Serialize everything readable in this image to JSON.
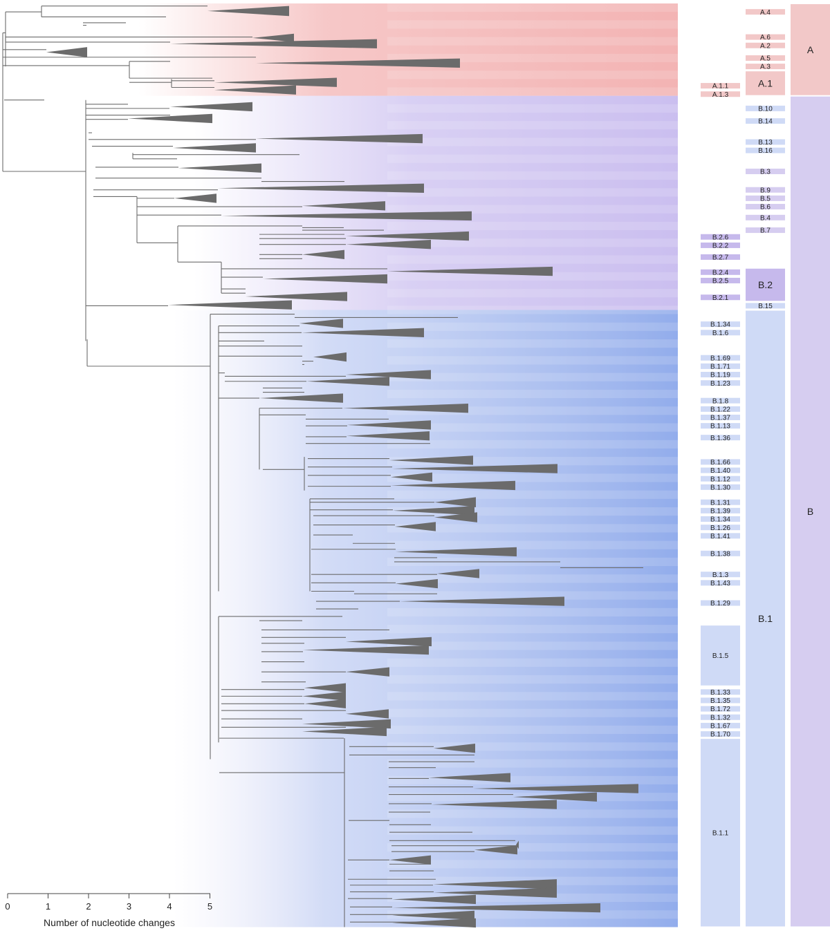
{
  "axis": {
    "label": "Number of nucleotide changes",
    "ticks": [
      "0",
      "1",
      "2",
      "3",
      "4",
      "5"
    ]
  },
  "colors": {
    "lineage_a": "#f2c8c8",
    "lineage_b": "#d6cdf0",
    "lineage_b1": "#cfdaf6",
    "lineage_b2": "#c6b9ec",
    "clade_triangle": "#6b6b6b",
    "branch": "#6b6b6b"
  },
  "level1": [
    {
      "label": "A",
      "row_start": 0,
      "row_end": 11
    },
    {
      "label": "B",
      "row_start": 11,
      "row_end": 110
    }
  ],
  "level2": [
    {
      "label": "A.4",
      "row": 1
    },
    {
      "label": "A.6",
      "row": 4
    },
    {
      "label": "A.2",
      "row": 5
    },
    {
      "label": "A.5",
      "row": 6.5
    },
    {
      "label": "A.3",
      "row": 7.5
    },
    {
      "label": "A.1",
      "row_start": 8,
      "row_end": 11
    },
    {
      "label": "B.10",
      "row": 12.5
    },
    {
      "label": "B.14",
      "row": 14
    },
    {
      "label": "B.13",
      "row": 16.5
    },
    {
      "label": "B.16",
      "row": 17.5
    },
    {
      "label": "B.3",
      "row": 20
    },
    {
      "label": "B.9",
      "row": 22.2
    },
    {
      "label": "B.5",
      "row": 23.2
    },
    {
      "label": "B.6",
      "row": 24.2
    },
    {
      "label": "B.4",
      "row": 25.5
    },
    {
      "label": "B.7",
      "row": 27
    },
    {
      "label": "B.2",
      "row_start": 31.5,
      "row_end": 35.5
    },
    {
      "label": "B.15",
      "row": 36
    },
    {
      "label": "B.1",
      "row_start": 36.5,
      "row_end": 110
    }
  ],
  "level3": [
    {
      "label": "A.1.1",
      "row": 9.8
    },
    {
      "label": "A.1.3",
      "row": 10.8
    },
    {
      "label": "B.2.6",
      "row": 27.8
    },
    {
      "label": "B.2.2",
      "row": 28.8
    },
    {
      "label": "B.2.7",
      "row": 30.2
    },
    {
      "label": "B.2.4",
      "row": 32
    },
    {
      "label": "B.2.5",
      "row": 33
    },
    {
      "label": "B.2.1",
      "row": 35
    },
    {
      "label": "B.1.34",
      "row": 38.2
    },
    {
      "label": "B.1.6",
      "row": 39.2
    },
    {
      "label": "B.1.69",
      "row": 42.2
    },
    {
      "label": "B.1.71",
      "row": 43.2
    },
    {
      "label": "B.1.19",
      "row": 44.2
    },
    {
      "label": "B.1.23",
      "row": 45.2
    },
    {
      "label": "B.1.8",
      "row": 47.3
    },
    {
      "label": "B.1.22",
      "row": 48.3
    },
    {
      "label": "B.1.37",
      "row": 49.3
    },
    {
      "label": "B.1.13",
      "row": 50.3
    },
    {
      "label": "B.1.36",
      "row": 51.7
    },
    {
      "label": "B.1.66",
      "row": 54.6
    },
    {
      "label": "B.1.40",
      "row": 55.6
    },
    {
      "label": "B.1.12",
      "row": 56.6
    },
    {
      "label": "B.1.30",
      "row": 57.6
    },
    {
      "label": "B.1.31",
      "row": 59.4
    },
    {
      "label": "B.1.39",
      "row": 60.4
    },
    {
      "label": "B.1.34",
      "row": 61.4
    },
    {
      "label": "B.1.26",
      "row": 62.4
    },
    {
      "label": "B.1.41",
      "row": 63.4
    },
    {
      "label": "B.1.38",
      "row": 65.5
    },
    {
      "label": "B.1.3",
      "row": 68
    },
    {
      "label": "B.1.43",
      "row": 69
    },
    {
      "label": "B.1.29",
      "row": 71.4
    },
    {
      "label": "B.1.5",
      "row_start": 74,
      "row_end": 81.3
    },
    {
      "label": "B.1.33",
      "row": 82
    },
    {
      "label": "B.1.35",
      "row": 83
    },
    {
      "label": "B.1.72",
      "row": 84
    },
    {
      "label": "B.1.32",
      "row": 85
    },
    {
      "label": "B.1.67",
      "row": 86
    },
    {
      "label": "B.1.70",
      "row": 87
    },
    {
      "label": "B.1.1",
      "row_start": 87.5,
      "row_end": 110
    }
  ]
}
